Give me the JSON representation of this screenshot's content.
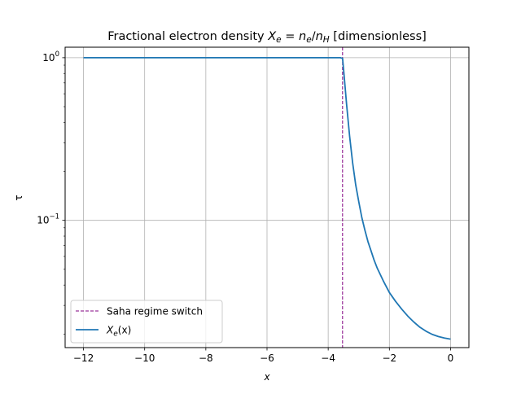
{
  "chart_data": {
    "type": "line",
    "title": "Fractional electron density $X_e = n_e/n_H$ [dimensionless]",
    "title_parts": {
      "prefix": "Fractional electron density ",
      "math_X": "X",
      "math_e1": "e",
      "math_eq": " = ",
      "math_n1": "n",
      "math_e2": "e",
      "math_slash": "/",
      "math_n2": "n",
      "math_H": "H",
      "suffix": " [dimensionless]"
    },
    "xlabel": "x",
    "ylabel": "τ",
    "xlim": [
      -12.6,
      0.6
    ],
    "ylim": [
      0.0165,
      1.16
    ],
    "yscale": "log",
    "grid": true,
    "legend_position": "lower-left",
    "x_ticks": [
      -12,
      -10,
      -8,
      -6,
      -4,
      -2,
      0
    ],
    "x_tick_labels": [
      "−12",
      "−10",
      "−8",
      "−6",
      "−4",
      "−2",
      "0"
    ],
    "y_ticks": [
      {
        "value": 1,
        "base": "10",
        "exp": "0"
      },
      {
        "value": 0.1,
        "base": "10",
        "exp": "−1"
      }
    ],
    "vlines": [
      {
        "x": -3.53,
        "label": "Saha regime switch",
        "color": "#800080",
        "style": "dashed"
      }
    ],
    "series": [
      {
        "name": "X_e(x)",
        "legend_parts": {
          "X": "X",
          "e": "e",
          "rest": "(x)"
        },
        "color": "#1f77b4",
        "x": [
          -12,
          -10,
          -8,
          -6,
          -4,
          -3.6,
          -3.53,
          -3.5,
          -3.45,
          -3.4,
          -3.3,
          -3.2,
          -3.1,
          -3.0,
          -2.9,
          -2.8,
          -2.7,
          -2.6,
          -2.5,
          -2.4,
          -2.2,
          -2.0,
          -1.8,
          -1.6,
          -1.4,
          -1.2,
          -1.0,
          -0.8,
          -0.6,
          -0.4,
          -0.2,
          0
        ],
        "y": [
          1.0,
          1.0,
          1.0,
          1.0,
          1.0,
          1.0,
          0.99,
          0.86,
          0.67,
          0.52,
          0.33,
          0.225,
          0.165,
          0.13,
          0.104,
          0.087,
          0.074,
          0.065,
          0.057,
          0.051,
          0.0425,
          0.036,
          0.0318,
          0.0285,
          0.0258,
          0.0237,
          0.022,
          0.0208,
          0.0199,
          0.0193,
          0.0189,
          0.0186
        ]
      }
    ]
  }
}
